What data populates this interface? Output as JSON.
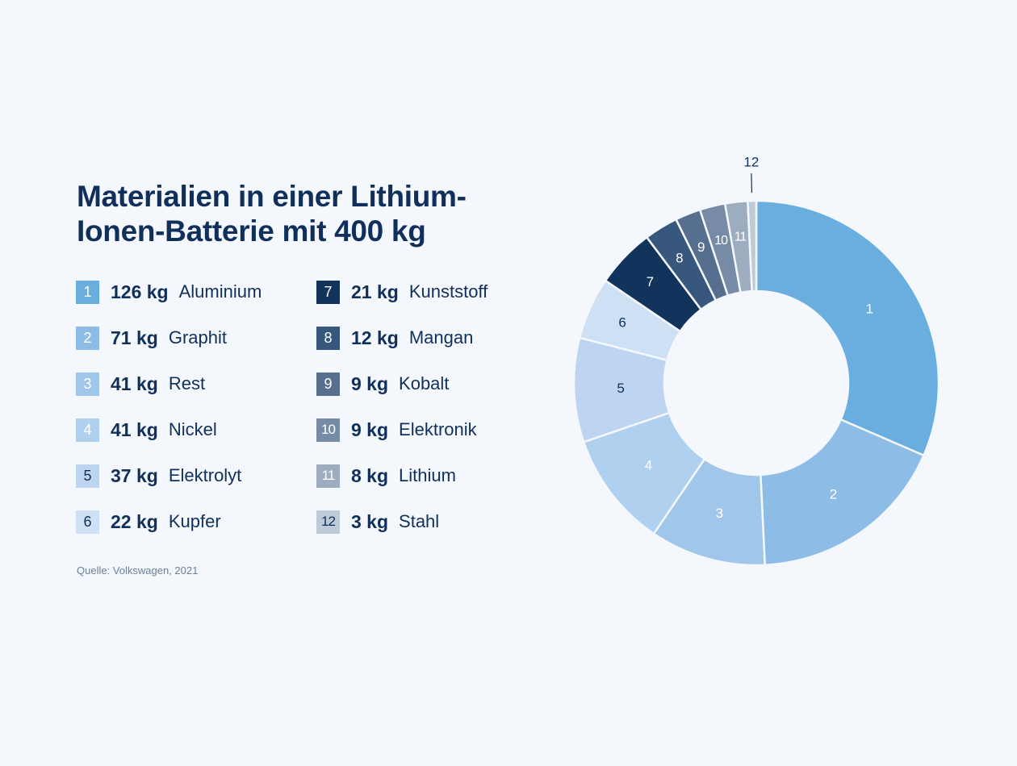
{
  "title_line1": "Materialien in einer Lithium-",
  "title_line2": "Ionen-Batterie mit 400 kg",
  "source": "Quelle: Volkswagen, 2021",
  "chart_data": {
    "type": "pie",
    "style": "donut",
    "total": 400,
    "unit": "kg",
    "title": "Materialien in einer Lithium-Ionen-Batterie mit 400 kg",
    "slices": [
      {
        "n": "1",
        "value": 126,
        "value_label": "126 kg",
        "name": "Aluminium",
        "color": "#6aaee0",
        "badge_text": "#ffffff",
        "slice_text": "#ffffff"
      },
      {
        "n": "2",
        "value": 71,
        "value_label": "71 kg",
        "name": "Graphit",
        "color": "#8dbde7",
        "badge_text": "#ffffff",
        "slice_text": "#ffffff"
      },
      {
        "n": "3",
        "value": 41,
        "value_label": "41 kg",
        "name": "Rest",
        "color": "#a0c7ea",
        "badge_text": "#ffffff",
        "slice_text": "#ffffff"
      },
      {
        "n": "4",
        "value": 41,
        "value_label": "41 kg",
        "name": "Nickel",
        "color": "#afd0ef",
        "badge_text": "#ffffff",
        "slice_text": "#ffffff"
      },
      {
        "n": "5",
        "value": 37,
        "value_label": "37 kg",
        "name": "Elektrolyt",
        "color": "#bdd5f0",
        "badge_text": "#0f2f5a",
        "slice_text": "#0f2f5a"
      },
      {
        "n": "6",
        "value": 22,
        "value_label": "22 kg",
        "name": "Kupfer",
        "color": "#cde0f4",
        "badge_text": "#0f2f5a",
        "slice_text": "#0f2f5a"
      },
      {
        "n": "7",
        "value": 21,
        "value_label": "21 kg",
        "name": "Kunststoff",
        "color": "#12335c",
        "badge_text": "#ffffff",
        "slice_text": "#ffffff"
      },
      {
        "n": "8",
        "value": 12,
        "value_label": "12 kg",
        "name": "Mangan",
        "color": "#37577c",
        "badge_text": "#ffffff",
        "slice_text": "#ffffff"
      },
      {
        "n": "9",
        "value": 9,
        "value_label": "9 kg",
        "name": "Kobalt",
        "color": "#566f8f",
        "badge_text": "#ffffff",
        "slice_text": "#ffffff"
      },
      {
        "n": "10",
        "value": 9,
        "value_label": "9 kg",
        "name": "Elektronik",
        "color": "#778ba7",
        "badge_text": "#ffffff",
        "slice_text": "#ffffff"
      },
      {
        "n": "11",
        "value": 8,
        "value_label": "8 kg",
        "name": "Lithium",
        "color": "#9dacbf",
        "badge_text": "#ffffff",
        "slice_text": "#ffffff"
      },
      {
        "n": "12",
        "value": 3,
        "value_label": "3 kg",
        "name": "Stahl",
        "color": "#bfcad8",
        "badge_text": "#0f2f5a",
        "slice_text": "#0f2f5a"
      }
    ]
  }
}
